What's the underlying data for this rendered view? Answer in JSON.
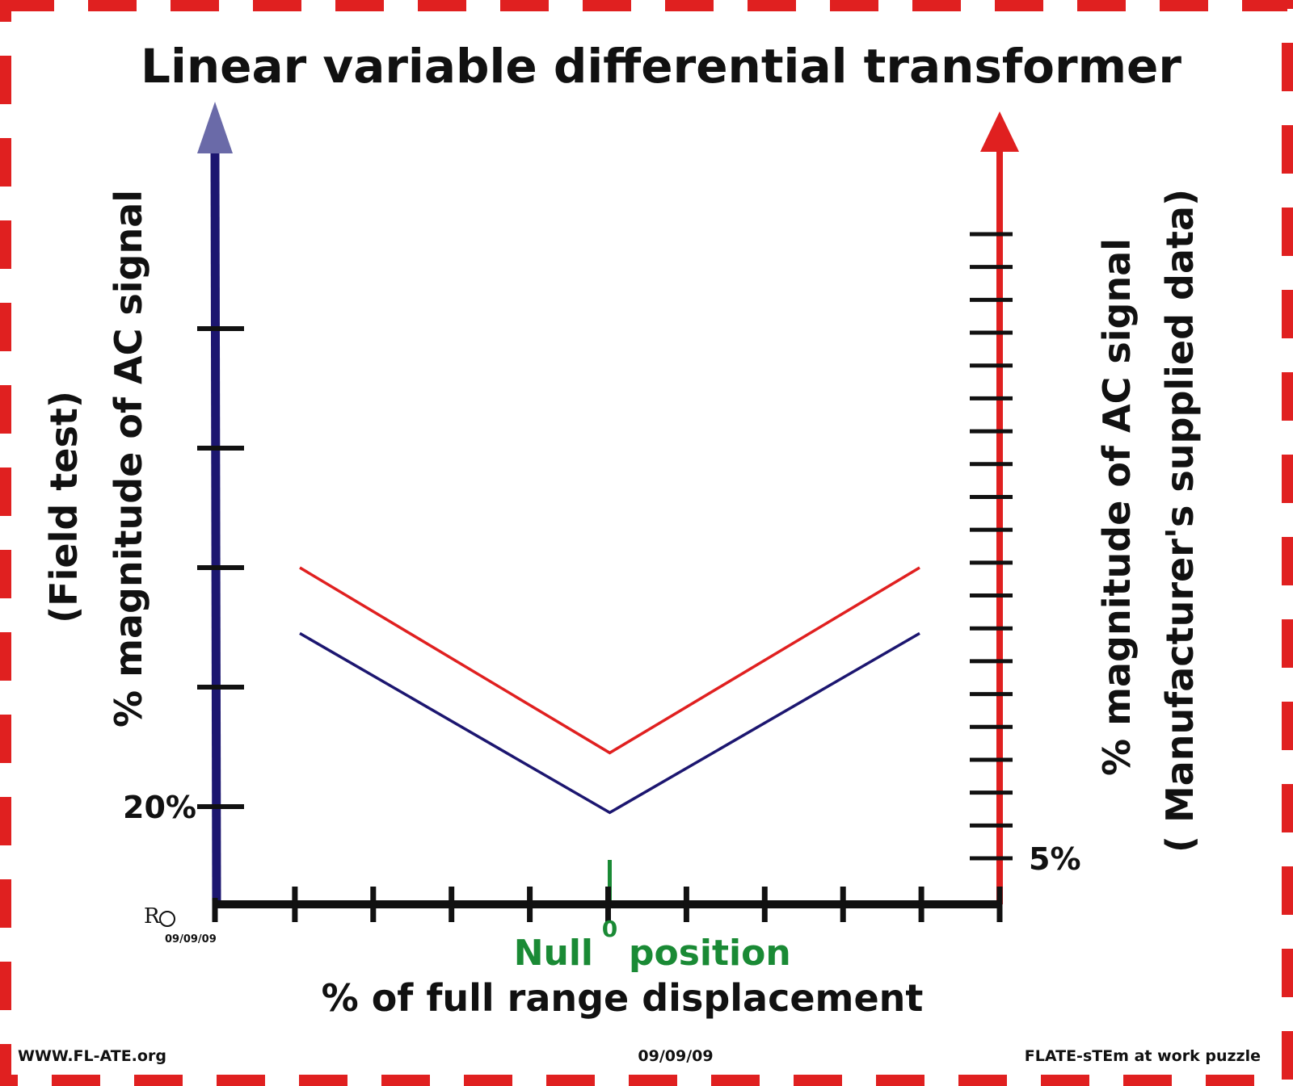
{
  "chart_data": {
    "type": "line",
    "title": "Linear variable differential transformer",
    "xlabel": "% of full range displacement",
    "ylabel_left_line1": "(Field test)",
    "ylabel_left_line2": "% magnitude of AC signal",
    "ylabel_right_line1": "% magnitude of AC signal",
    "ylabel_right_line2": "( Manufacturer's supplied data)",
    "left_tick_label": "20%",
    "right_tick_label": "5%",
    "x_zero_label": "0",
    "null_label_left": "Null",
    "null_label_right": "position",
    "x_ticks": [
      -9,
      -7,
      -5,
      -3,
      -1,
      1,
      3,
      5,
      7,
      9
    ],
    "xlim": [
      -9,
      9
    ],
    "left_ylim": [
      0,
      100
    ],
    "left_ticks": [
      20,
      40,
      60,
      80,
      100
    ],
    "right_ylim": [
      0,
      100
    ],
    "right_ticks": [
      5,
      10,
      15,
      20,
      25,
      30,
      35,
      40,
      45,
      50,
      55,
      60,
      65,
      70,
      75,
      80,
      85,
      90,
      95,
      100
    ],
    "series": [
      {
        "color": "#e02020",
        "axis": "left",
        "x": [
          -7.5,
          0,
          7.5
        ],
        "y": [
          60,
          29,
          60
        ]
      },
      {
        "color": "#1c1670",
        "axis": "left",
        "x": [
          -7.5,
          0,
          7.5
        ],
        "y": [
          49,
          19,
          49
        ]
      }
    ],
    "colors": {
      "left_axis": "#1c1670",
      "left_arrowhead": "#6a6aa8",
      "right_axis": "#e02020",
      "x_axis": "#111111",
      "null_mark": "#1a8a35",
      "frame": "#e02020"
    }
  },
  "footer": {
    "left": "WWW.FL-ATE.org",
    "center": "09/09/09",
    "right": "FLATE-sTEm at work puzzle"
  },
  "signature": {
    "initials": "R",
    "date": "09/09/09"
  }
}
